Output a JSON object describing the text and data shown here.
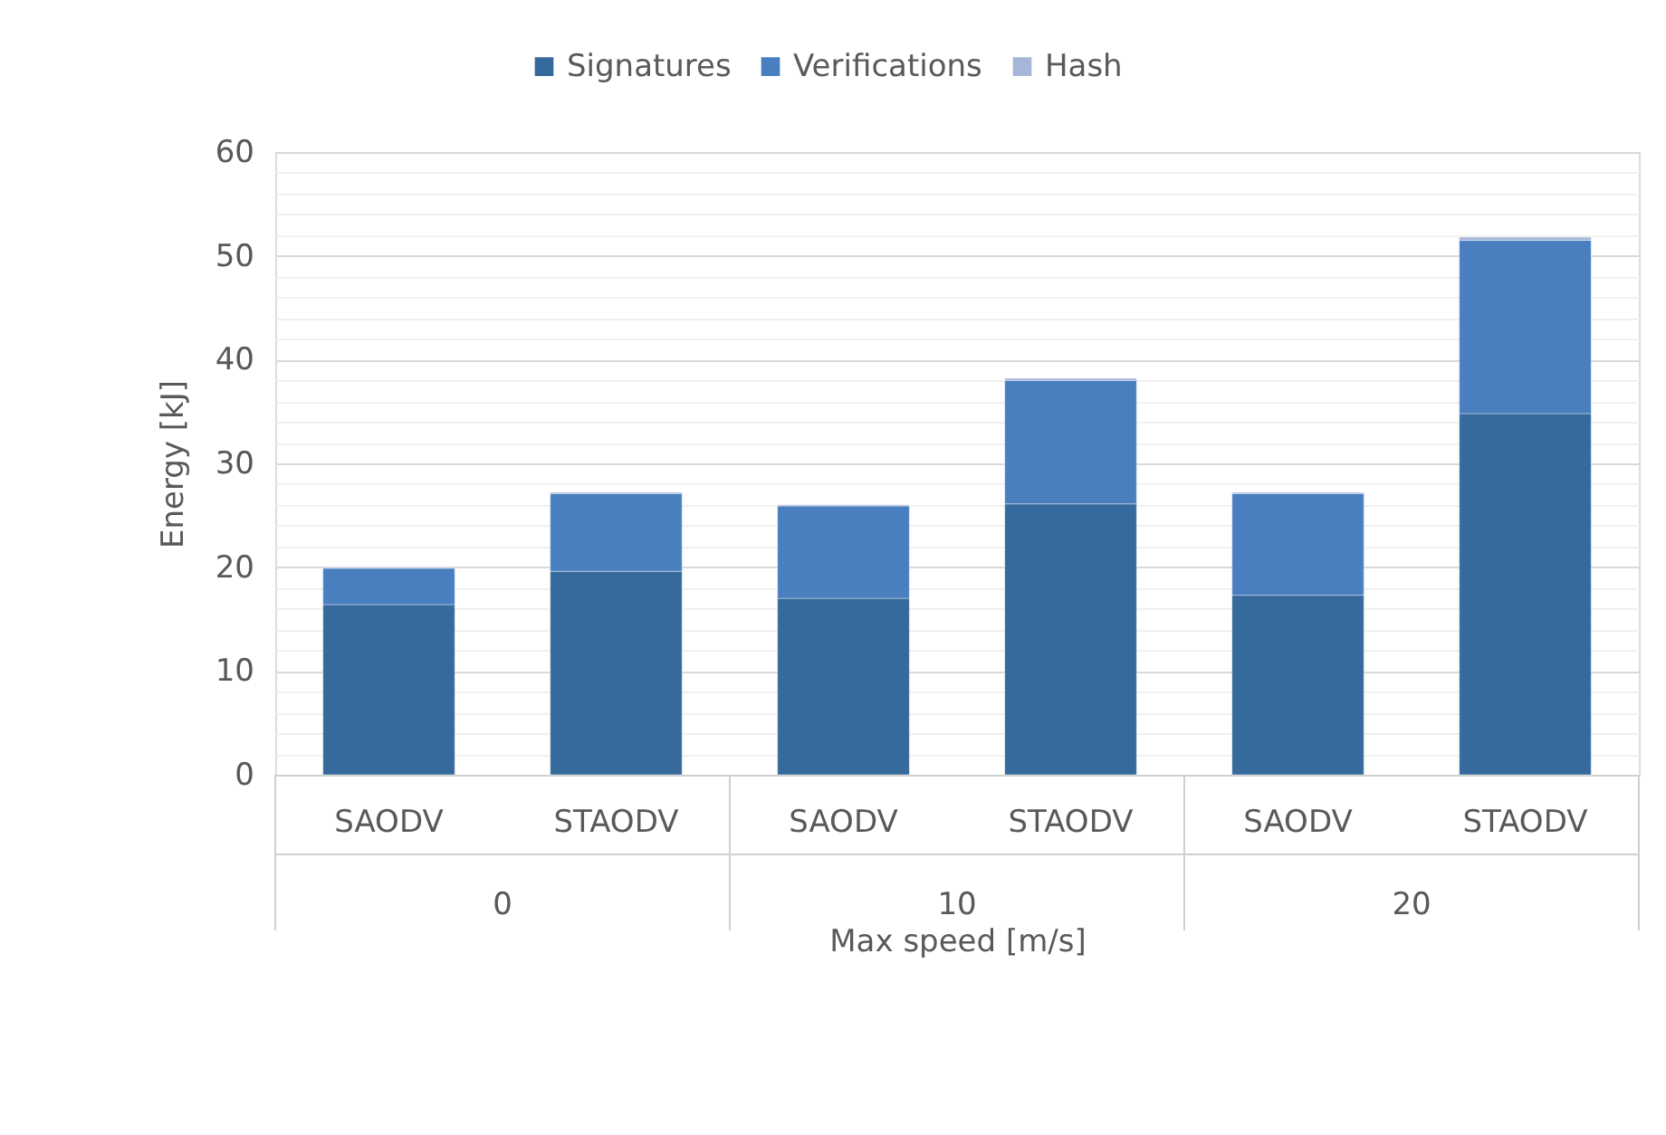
{
  "chart_data": {
    "type": "bar",
    "stacked": true,
    "categories": [
      "SAODV",
      "STAODV",
      "SAODV",
      "STAODV",
      "SAODV",
      "STAODV"
    ],
    "series": [
      {
        "name": "Signatures",
        "color": "#36699c",
        "values": [
          16.4,
          19.6,
          17.0,
          26.1,
          17.3,
          34.8
        ]
      },
      {
        "name": "Verifications",
        "color": "#4a7fbf",
        "values": [
          3.5,
          7.5,
          8.9,
          11.9,
          9.8,
          16.7
        ]
      },
      {
        "name": "Hash",
        "color": "#a5b6d9",
        "values": [
          0.1,
          0.1,
          0.1,
          0.2,
          0.1,
          0.3
        ]
      }
    ],
    "ylim": [
      0,
      60
    ],
    "yticks": [
      0,
      {
        "value": 2,
        "label": null
      },
      {
        "value": 4,
        "label": null
      },
      {
        "value": 6,
        "label": null
      },
      {
        "value": 8,
        "label": null
      },
      10,
      {
        "value": 12,
        "label": null
      },
      {
        "value": 14,
        "label": null
      },
      {
        "value": 16,
        "label": null
      },
      {
        "value": 18,
        "label": null
      },
      20,
      {
        "value": 22,
        "label": null
      },
      {
        "value": 24,
        "label": null
      },
      {
        "value": 26,
        "label": null
      },
      {
        "value": 28,
        "label": null
      },
      30,
      {
        "value": 32,
        "label": null
      },
      {
        "value": 34,
        "label": null
      },
      {
        "value": 36,
        "label": null
      },
      {
        "value": 38,
        "label": null
      },
      40,
      {
        "value": 42,
        "label": null
      },
      {
        "value": 44,
        "label": null
      },
      {
        "value": 46,
        "label": null
      },
      {
        "value": 48,
        "label": null
      },
      50,
      {
        "value": 52,
        "label": null
      },
      {
        "value": 54,
        "label": null
      },
      {
        "value": 56,
        "label": null
      },
      {
        "value": 58,
        "label": null
      },
      60
    ],
    "ylabel": "Energy [kJ]",
    "xlabel": "Max speed [m/s]",
    "annotations": [
      "0",
      "10",
      "20"
    ],
    "legend": "top",
    "grid": "y"
  }
}
